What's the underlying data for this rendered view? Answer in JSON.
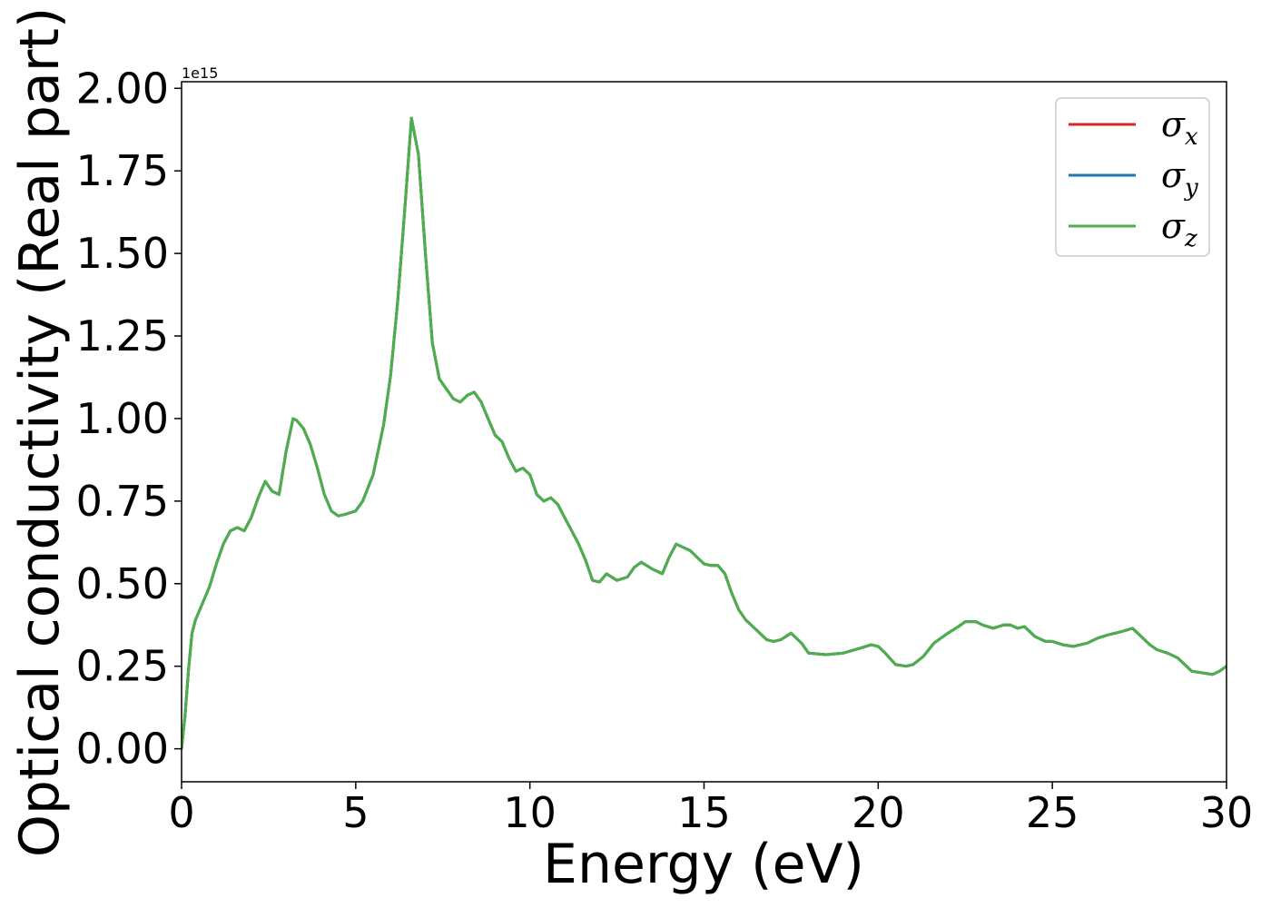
{
  "chart_data": {
    "type": "line",
    "title": "",
    "xlabel": "Energy (eV)",
    "ylabel": "Optical conductivity (Real part)",
    "y_offset_label": "1e15",
    "xlim": [
      0,
      30
    ],
    "ylim": [
      -0.1,
      2.02
    ],
    "x_ticks": [
      0,
      5,
      10,
      15,
      20,
      25,
      30
    ],
    "x_tick_labels": [
      "0",
      "5",
      "10",
      "15",
      "20",
      "25",
      "30"
    ],
    "y_ticks": [
      0.0,
      0.25,
      0.5,
      0.75,
      1.0,
      1.25,
      1.5,
      1.75,
      2.0
    ],
    "y_tick_labels": [
      "0.00",
      "0.25",
      "0.50",
      "0.75",
      "1.00",
      "1.25",
      "1.50",
      "1.75",
      "2.00"
    ],
    "grid": false,
    "legend_position": "top-right",
    "x": [
      0.0,
      0.1,
      0.2,
      0.3,
      0.4,
      0.6,
      0.8,
      1.0,
      1.2,
      1.4,
      1.6,
      1.8,
      2.0,
      2.2,
      2.4,
      2.6,
      2.8,
      3.0,
      3.2,
      3.3,
      3.5,
      3.7,
      3.9,
      4.1,
      4.3,
      4.5,
      4.7,
      5.0,
      5.2,
      5.5,
      5.8,
      6.0,
      6.2,
      6.4,
      6.6,
      6.8,
      7.0,
      7.2,
      7.4,
      7.6,
      7.8,
      8.0,
      8.2,
      8.4,
      8.6,
      8.8,
      9.0,
      9.2,
      9.4,
      9.6,
      9.8,
      10.0,
      10.2,
      10.4,
      10.6,
      10.8,
      11.0,
      11.2,
      11.4,
      11.6,
      11.8,
      12.0,
      12.2,
      12.5,
      12.8,
      13.0,
      13.2,
      13.5,
      13.8,
      14.0,
      14.2,
      14.4,
      14.6,
      14.8,
      15.0,
      15.2,
      15.4,
      15.6,
      15.8,
      16.0,
      16.2,
      16.5,
      16.8,
      17.0,
      17.2,
      17.5,
      17.8,
      18.0,
      18.5,
      19.0,
      19.5,
      19.8,
      20.0,
      20.2,
      20.5,
      20.8,
      21.0,
      21.3,
      21.6,
      22.0,
      22.3,
      22.5,
      22.8,
      23.0,
      23.3,
      23.6,
      23.8,
      24.0,
      24.2,
      24.5,
      24.8,
      25.0,
      25.3,
      25.6,
      26.0,
      26.3,
      26.6,
      27.0,
      27.3,
      27.6,
      27.8,
      28.0,
      28.3,
      28.6,
      28.8,
      29.0,
      29.3,
      29.6,
      29.8,
      30.0
    ],
    "series": [
      {
        "name": "σx",
        "symbol": "σ",
        "subscript": "x",
        "color": "#d62728",
        "values": [
          0.0,
          0.1,
          0.24,
          0.35,
          0.39,
          0.44,
          0.49,
          0.56,
          0.62,
          0.66,
          0.67,
          0.66,
          0.7,
          0.76,
          0.81,
          0.78,
          0.77,
          0.9,
          1.0,
          0.995,
          0.97,
          0.92,
          0.85,
          0.77,
          0.72,
          0.705,
          0.71,
          0.72,
          0.75,
          0.83,
          0.98,
          1.13,
          1.35,
          1.62,
          1.91,
          1.8,
          1.5,
          1.23,
          1.12,
          1.09,
          1.06,
          1.05,
          1.07,
          1.08,
          1.05,
          1.0,
          0.95,
          0.93,
          0.88,
          0.84,
          0.85,
          0.83,
          0.77,
          0.75,
          0.76,
          0.74,
          0.7,
          0.66,
          0.62,
          0.57,
          0.51,
          0.505,
          0.53,
          0.51,
          0.52,
          0.55,
          0.565,
          0.545,
          0.53,
          0.58,
          0.62,
          0.61,
          0.6,
          0.58,
          0.56,
          0.555,
          0.555,
          0.53,
          0.47,
          0.42,
          0.39,
          0.36,
          0.33,
          0.325,
          0.33,
          0.35,
          0.32,
          0.29,
          0.285,
          0.29,
          0.305,
          0.315,
          0.31,
          0.29,
          0.255,
          0.25,
          0.255,
          0.28,
          0.32,
          0.35,
          0.37,
          0.385,
          0.385,
          0.375,
          0.365,
          0.375,
          0.375,
          0.365,
          0.37,
          0.34,
          0.325,
          0.325,
          0.315,
          0.31,
          0.32,
          0.335,
          0.345,
          0.355,
          0.365,
          0.335,
          0.315,
          0.3,
          0.29,
          0.275,
          0.255,
          0.235,
          0.23,
          0.225,
          0.235,
          0.25
        ]
      },
      {
        "name": "σy",
        "symbol": "σ",
        "subscript": "y",
        "color": "#1f77b4",
        "values": [
          0.0,
          0.1,
          0.24,
          0.35,
          0.39,
          0.44,
          0.49,
          0.56,
          0.62,
          0.66,
          0.67,
          0.66,
          0.7,
          0.76,
          0.81,
          0.78,
          0.77,
          0.9,
          1.0,
          0.995,
          0.97,
          0.92,
          0.85,
          0.77,
          0.72,
          0.705,
          0.71,
          0.72,
          0.75,
          0.83,
          0.98,
          1.13,
          1.35,
          1.62,
          1.91,
          1.8,
          1.5,
          1.23,
          1.12,
          1.09,
          1.06,
          1.05,
          1.07,
          1.08,
          1.05,
          1.0,
          0.95,
          0.93,
          0.88,
          0.84,
          0.85,
          0.83,
          0.77,
          0.75,
          0.76,
          0.74,
          0.7,
          0.66,
          0.62,
          0.57,
          0.51,
          0.505,
          0.53,
          0.51,
          0.52,
          0.55,
          0.565,
          0.545,
          0.53,
          0.58,
          0.62,
          0.61,
          0.6,
          0.58,
          0.56,
          0.555,
          0.555,
          0.53,
          0.47,
          0.42,
          0.39,
          0.36,
          0.33,
          0.325,
          0.33,
          0.35,
          0.32,
          0.29,
          0.285,
          0.29,
          0.305,
          0.315,
          0.31,
          0.29,
          0.255,
          0.25,
          0.255,
          0.28,
          0.32,
          0.35,
          0.37,
          0.385,
          0.385,
          0.375,
          0.365,
          0.375,
          0.375,
          0.365,
          0.37,
          0.34,
          0.325,
          0.325,
          0.315,
          0.31,
          0.32,
          0.335,
          0.345,
          0.355,
          0.365,
          0.335,
          0.315,
          0.3,
          0.29,
          0.275,
          0.255,
          0.235,
          0.23,
          0.225,
          0.235,
          0.25
        ]
      },
      {
        "name": "σz",
        "symbol": "σ",
        "subscript": "z",
        "color": "#4daf4a",
        "values": [
          0.0,
          0.1,
          0.24,
          0.35,
          0.39,
          0.44,
          0.49,
          0.56,
          0.62,
          0.66,
          0.67,
          0.66,
          0.7,
          0.76,
          0.81,
          0.78,
          0.77,
          0.9,
          1.0,
          0.995,
          0.97,
          0.92,
          0.85,
          0.77,
          0.72,
          0.705,
          0.71,
          0.72,
          0.75,
          0.83,
          0.98,
          1.13,
          1.35,
          1.62,
          1.91,
          1.8,
          1.5,
          1.23,
          1.12,
          1.09,
          1.06,
          1.05,
          1.07,
          1.08,
          1.05,
          1.0,
          0.95,
          0.93,
          0.88,
          0.84,
          0.85,
          0.83,
          0.77,
          0.75,
          0.76,
          0.74,
          0.7,
          0.66,
          0.62,
          0.57,
          0.51,
          0.505,
          0.53,
          0.51,
          0.52,
          0.55,
          0.565,
          0.545,
          0.53,
          0.58,
          0.62,
          0.61,
          0.6,
          0.58,
          0.56,
          0.555,
          0.555,
          0.53,
          0.47,
          0.42,
          0.39,
          0.36,
          0.33,
          0.325,
          0.33,
          0.35,
          0.32,
          0.29,
          0.285,
          0.29,
          0.305,
          0.315,
          0.31,
          0.29,
          0.255,
          0.25,
          0.255,
          0.28,
          0.32,
          0.35,
          0.37,
          0.385,
          0.385,
          0.375,
          0.365,
          0.375,
          0.375,
          0.365,
          0.37,
          0.34,
          0.325,
          0.325,
          0.315,
          0.31,
          0.32,
          0.335,
          0.345,
          0.355,
          0.365,
          0.335,
          0.315,
          0.3,
          0.29,
          0.275,
          0.255,
          0.235,
          0.23,
          0.225,
          0.235,
          0.25
        ]
      }
    ]
  }
}
